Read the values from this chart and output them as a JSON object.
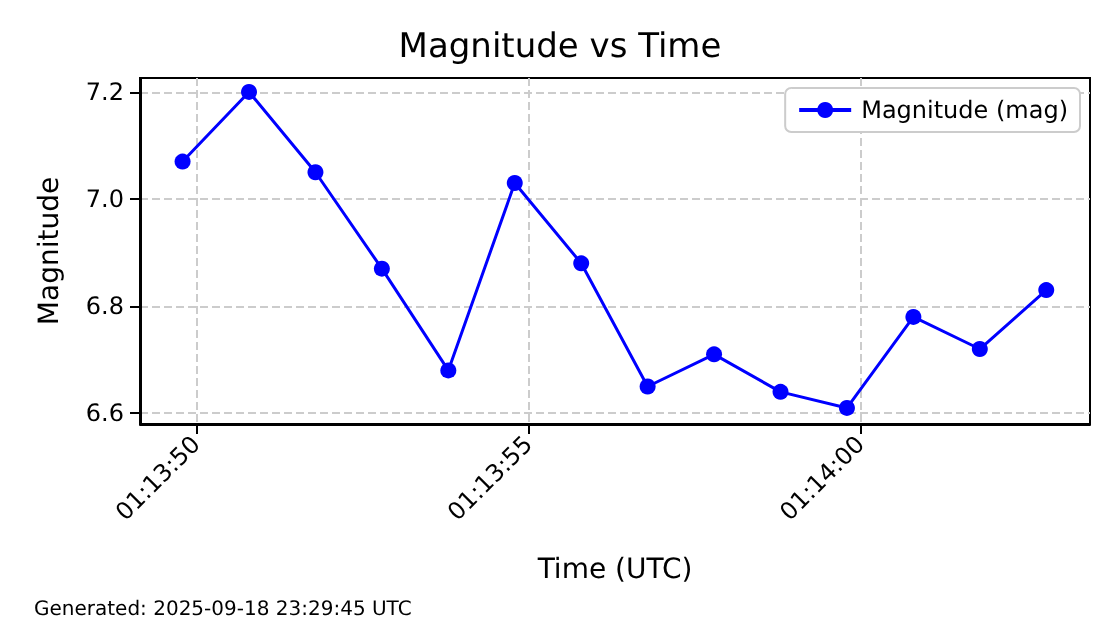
{
  "chart_data": {
    "type": "line",
    "title": "Magnitude vs Time",
    "xlabel": "Time (UTC)",
    "ylabel": "Magnitude",
    "x": [
      1.2305,
      1.2307778,
      1.2310556,
      1.2313333,
      1.2316111,
      1.2318889,
      1.2321667,
      1.2324444,
      1.2327222,
      1.233,
      1.2332778,
      1.2335556,
      1.2338333,
      1.2341111
    ],
    "series": [
      {
        "name": "Magnitude (mag)",
        "color": "#0000ff",
        "values": [
          7.07,
          7.2,
          7.05,
          6.87,
          6.68,
          7.03,
          6.88,
          6.65,
          6.71,
          6.64,
          6.61,
          6.78,
          6.72,
          6.83
        ]
      }
    ],
    "xlim": [
      1.230322,
      1.234294
    ],
    "xticks": [
      {
        "value": 1.2305556,
        "label": "01:13:50"
      },
      {
        "value": 1.2319444,
        "label": "01:13:55"
      },
      {
        "value": 1.2333333,
        "label": "01:14:00"
      }
    ],
    "ylim": [
      6.58,
      7.226
    ],
    "yticks": [
      6.6,
      6.8,
      {
        "value": 7,
        "label": "7.0"
      },
      7.2
    ],
    "grid": true,
    "legend": "top right",
    "marker": "circle",
    "line_style": "solid",
    "annotations": [
      "Generated: 2025-09-18 23:29:45 UTC"
    ]
  }
}
